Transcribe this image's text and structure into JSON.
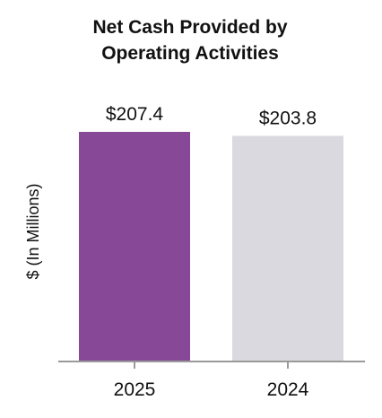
{
  "chart_data": {
    "type": "bar",
    "title_lines": [
      "Net Cash Provided by",
      "Operating Activities"
    ],
    "ylabel": "$ (In Millions)",
    "xlabel": "",
    "categories": [
      "2025",
      "2024"
    ],
    "values": [
      207.4,
      203.8
    ],
    "value_labels": [
      "$207.4",
      "$203.8"
    ],
    "colors": [
      "#874897",
      "#d9d9df"
    ],
    "ylim": [
      0,
      207.4
    ],
    "axis_color": "#9a9a9a",
    "grid": false,
    "legend": "none"
  }
}
